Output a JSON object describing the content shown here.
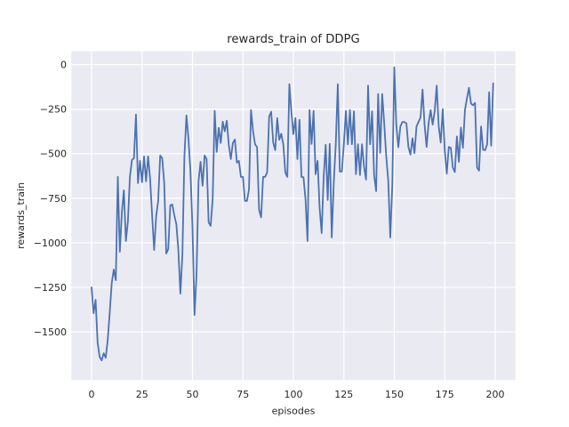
{
  "title": "rewards_train of DDPG",
  "colors": {
    "figure_background": "#ffffff",
    "axes_background": "#eaeaf2",
    "gridline": "#ffffff",
    "line": "#4c72b0",
    "text": "#262626"
  },
  "chart_data": {
    "type": "line",
    "title": "rewards_train of DDPG",
    "xlabel": "episodes",
    "ylabel": "rewards_train",
    "grid": true,
    "legend": "none",
    "xlim": [
      -10,
      210
    ],
    "ylim": [
      -1770,
      75
    ],
    "x_ticks": [
      0,
      25,
      50,
      75,
      100,
      125,
      150,
      175,
      200
    ],
    "x_tick_labels": [
      "0",
      "25",
      "50",
      "75",
      "100",
      "125",
      "150",
      "175",
      "200"
    ],
    "y_ticks": [
      0,
      -250,
      -500,
      -750,
      -1000,
      -1250,
      -1500
    ],
    "y_tick_labels": [
      "0",
      "−250",
      "−500",
      "−750",
      "−1000",
      "−1250",
      "−1500"
    ],
    "series": [
      {
        "name": "rewards_train",
        "color": "#4c72b0",
        "x_range": {
          "start": 0,
          "end": 199,
          "step": 1
        },
        "values": [
          -1250,
          -1395,
          -1320,
          -1560,
          -1640,
          -1660,
          -1620,
          -1645,
          -1545,
          -1390,
          -1225,
          -1150,
          -1210,
          -630,
          -1050,
          -830,
          -705,
          -990,
          -880,
          -630,
          -535,
          -525,
          -280,
          -665,
          -540,
          -660,
          -515,
          -655,
          -515,
          -640,
          -845,
          -1040,
          -850,
          -765,
          -510,
          -525,
          -665,
          -1060,
          -1035,
          -790,
          -785,
          -845,
          -895,
          -1040,
          -1285,
          -1070,
          -515,
          -285,
          -415,
          -600,
          -915,
          -1405,
          -1180,
          -655,
          -545,
          -680,
          -510,
          -530,
          -885,
          -905,
          -755,
          -260,
          -490,
          -355,
          -440,
          -320,
          -375,
          -315,
          -450,
          -530,
          -440,
          -420,
          -550,
          -540,
          -630,
          -630,
          -765,
          -765,
          -700,
          -255,
          -372,
          -447,
          -463,
          -815,
          -857,
          -630,
          -630,
          -605,
          -290,
          -265,
          -438,
          -480,
          -300,
          -422,
          -388,
          -447,
          -605,
          -630,
          -110,
          -265,
          -390,
          -300,
          -530,
          -310,
          -630,
          -632,
          -755,
          -990,
          -255,
          -445,
          -260,
          -615,
          -540,
          -805,
          -945,
          -630,
          -450,
          -760,
          -445,
          -970,
          -665,
          -447,
          -110,
          -600,
          -600,
          -447,
          -260,
          -447,
          -255,
          -447,
          -262,
          -615,
          -447,
          -620,
          -447,
          -572,
          -645,
          -118,
          -447,
          -262,
          -620,
          -710,
          -165,
          -495,
          -165,
          -330,
          -515,
          -650,
          -970,
          -680,
          -15,
          -340,
          -463,
          -347,
          -322,
          -322,
          -330,
          -463,
          -505,
          -413,
          -497,
          -347,
          -322,
          -297,
          -140,
          -338,
          -462,
          -328,
          -255,
          -337,
          -262,
          -118,
          -345,
          -437,
          -250,
          -478,
          -612,
          -462,
          -467,
          -578,
          -603,
          -403,
          -545,
          -353,
          -467,
          -255,
          -190,
          -130,
          -218,
          -228,
          -215,
          -578,
          -595,
          -347,
          -478,
          -480,
          -447,
          -155,
          -455,
          -105
        ]
      }
    ]
  }
}
